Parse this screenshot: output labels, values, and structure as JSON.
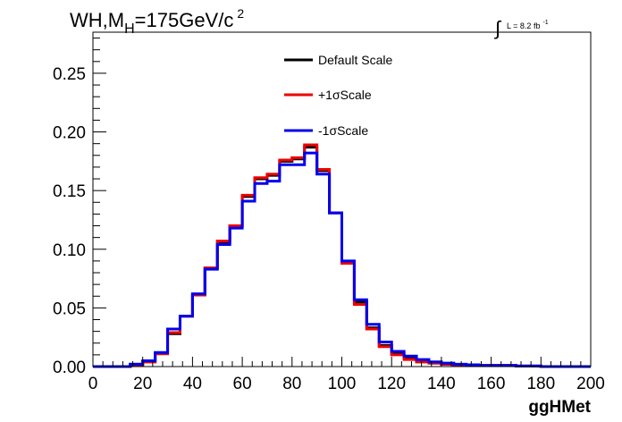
{
  "chart_data": {
    "type": "line",
    "step": true,
    "title": "WH,M",
    "title_sub": "H",
    "title_rest": "=175GeV/c",
    "title_sup": "2",
    "lumi": {
      "integral_symbol": "∫",
      "text": "L = 8.2 fb",
      "sup": "-1"
    },
    "xlabel": "ggHMet",
    "ylabel": "",
    "xlim": [
      0,
      200
    ],
    "ylim": [
      0,
      0.285
    ],
    "grid": false,
    "legend_position": "top-center",
    "x_ticks": [
      "0",
      "20",
      "40",
      "60",
      "80",
      "100",
      "120",
      "140",
      "160",
      "180",
      "200"
    ],
    "y_ticks": [
      "0.00",
      "0.05",
      "0.10",
      "0.15",
      "0.20",
      "0.25"
    ],
    "bin_edges": [
      0,
      5,
      10,
      15,
      20,
      25,
      30,
      35,
      40,
      45,
      50,
      55,
      60,
      65,
      70,
      75,
      80,
      85,
      90,
      95,
      100,
      105,
      110,
      115,
      120,
      125,
      130,
      135,
      140,
      145,
      150,
      155,
      160,
      165,
      170,
      175,
      180,
      185,
      190,
      195,
      200
    ],
    "series": [
      {
        "name": "Default Scale",
        "color": "#000000",
        "values": [
          0,
          0,
          0,
          0.002,
          0.004,
          0.011,
          0.028,
          0.043,
          0.061,
          0.084,
          0.106,
          0.12,
          0.145,
          0.16,
          0.163,
          0.175,
          0.177,
          0.187,
          0.167,
          0.131,
          0.089,
          0.055,
          0.033,
          0.018,
          0.011,
          0.007,
          0.004,
          0.003,
          0.002,
          0.0015,
          0.001,
          0.001,
          0.001,
          0.001,
          0.0005,
          0.0005,
          0,
          0,
          0,
          0
        ]
      },
      {
        "name": "+1σScale",
        "color": "#ee0000",
        "values": [
          0,
          0,
          0,
          0.0015,
          0.004,
          0.011,
          0.029,
          0.043,
          0.061,
          0.084,
          0.107,
          0.12,
          0.146,
          0.161,
          0.164,
          0.176,
          0.178,
          0.189,
          0.168,
          0.131,
          0.088,
          0.053,
          0.032,
          0.017,
          0.01,
          0.006,
          0.004,
          0.003,
          0.002,
          0.0015,
          0.001,
          0.001,
          0.001,
          0.001,
          0.0005,
          0.0005,
          0,
          0,
          0,
          0
        ]
      },
      {
        "name": "-1σScale",
        "color": "#0000ee",
        "values": [
          0,
          0,
          0,
          0.002,
          0.005,
          0.012,
          0.032,
          0.043,
          0.062,
          0.083,
          0.104,
          0.118,
          0.141,
          0.156,
          0.158,
          0.172,
          0.172,
          0.182,
          0.164,
          0.131,
          0.09,
          0.057,
          0.036,
          0.021,
          0.013,
          0.009,
          0.006,
          0.004,
          0.003,
          0.002,
          0.0015,
          0.001,
          0.001,
          0.001,
          0.0005,
          0.0005,
          0,
          0,
          0,
          0
        ]
      }
    ]
  }
}
